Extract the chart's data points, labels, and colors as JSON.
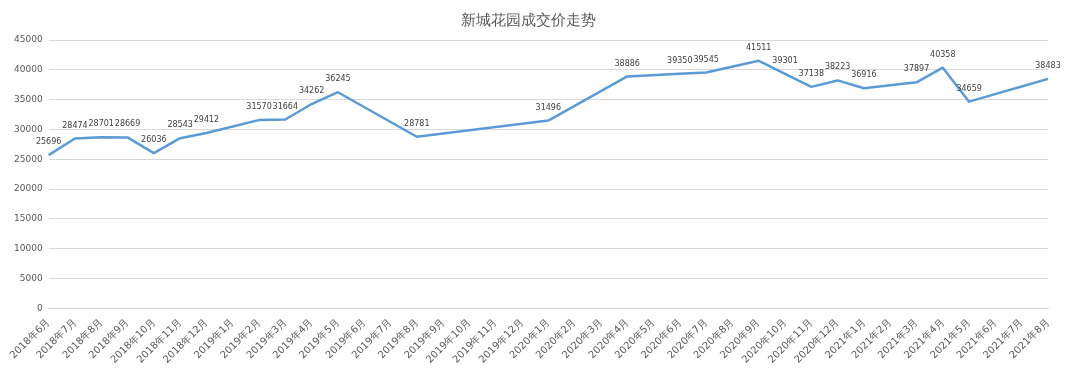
{
  "chart_data": {
    "type": "line",
    "title": "新城花园成交价走势",
    "categories": [
      "2018年6月",
      "2018年7月",
      "2018年8月",
      "2018年9月",
      "2018年10月",
      "2018年11月",
      "2018年12月",
      "2019年1月",
      "2019年2月",
      "2019年3月",
      "2019年4月",
      "2019年5月",
      "2019年6月",
      "2019年7月",
      "2019年8月",
      "2019年9月",
      "2019年10月",
      "2019年11月",
      "2019年12月",
      "2020年1月",
      "2020年2月",
      "2020年3月",
      "2020年4月",
      "2020年5月",
      "2020年6月",
      "2020年7月",
      "2020年8月",
      "2020年9月",
      "2020年10月",
      "2020年11月",
      "2020年12月",
      "2021年1月",
      "2021年2月",
      "2021年3月",
      "2021年4月",
      "2021年5月",
      "2021年6月",
      "2021年7月",
      "2021年8月"
    ],
    "series": [
      {
        "color": "#5b9bd5",
        "values": [
          25696,
          28474,
          28701,
          28669,
          26036,
          28543,
          29412,
          null,
          31570,
          31664,
          34262,
          36245,
          null,
          null,
          28781,
          null,
          null,
          null,
          null,
          31496,
          null,
          null,
          38886,
          null,
          39350,
          39545,
          null,
          41511,
          39301,
          37138,
          38223,
          36916,
          null,
          37897,
          40358,
          34659,
          null,
          null,
          38483
        ]
      }
    ],
    "ylim": [
      0,
      45000
    ],
    "yticks": [
      0,
      5000,
      10000,
      15000,
      20000,
      25000,
      30000,
      35000,
      40000,
      45000
    ],
    "grid": "y",
    "legend": false,
    "marker": "none",
    "line_style": "solid",
    "data_labels": true
  }
}
